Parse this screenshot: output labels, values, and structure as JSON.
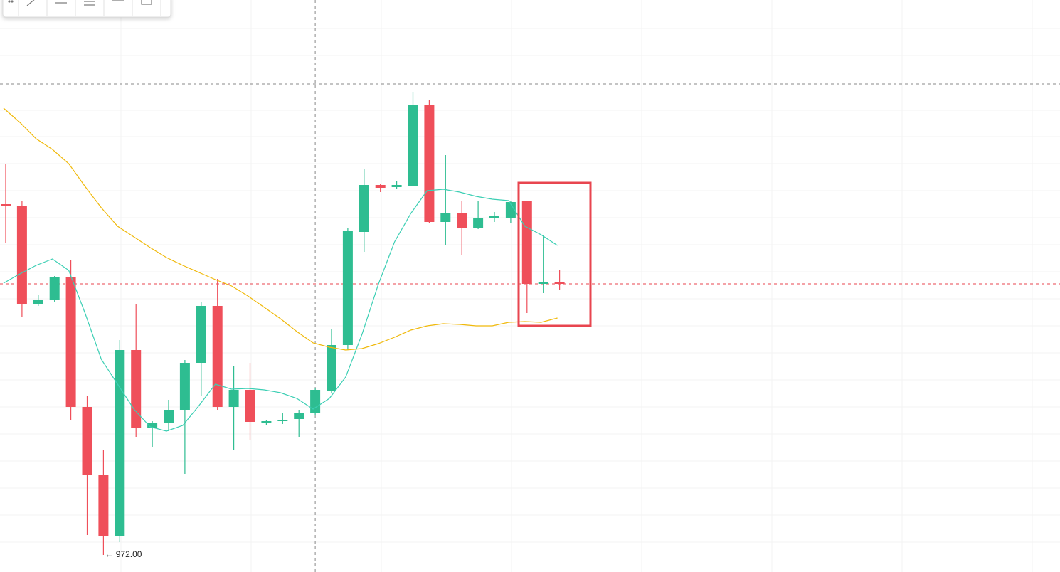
{
  "chart_data": {
    "type": "candlestick",
    "up_color": "#2ebd91",
    "down_color": "#ef4f5a",
    "ylim": [
      969.6,
      1050
    ],
    "grid": true,
    "open": [
      1021.3,
      1021.0,
      1007.2,
      1007.8,
      1011.0,
      992.8,
      983.2,
      974.7,
      1000.8,
      989.8,
      990.5,
      992.4,
      999.0,
      1007.0,
      992.8,
      995.2,
      990.6,
      990.8,
      991.1,
      992.0,
      995.0,
      1001.5,
      1017.4,
      1024.0,
      1023.7,
      1023.8,
      1035.3,
      1018.8,
      1020.1,
      1018.0,
      1019.4,
      1019.3,
      1021.7,
      1010.1,
      1010.3
    ],
    "high": [
      1027.0,
      1021.8,
      1008.6,
      1011.2,
      1013.4,
      994.4,
      986.7,
      1002.2,
      1007.2,
      990.8,
      993.8,
      999.4,
      1007.6,
      1010.8,
      998.6,
      999.0,
      991.0,
      992.0,
      992.4,
      995.4,
      1003.7,
      1018.0,
      1026.3,
      1024.2,
      1024.6,
      1037.0,
      1036.0,
      1028.2,
      1021.8,
      1021.8,
      1020.2,
      1021.8,
      1021.8,
      1017.0,
      1012.0
    ],
    "low": [
      1015.8,
      1005.5,
      1007.0,
      1007.6,
      991.0,
      974.8,
      972.0,
      973.8,
      988.6,
      987.2,
      989.4,
      983.4,
      994.4,
      992.4,
      986.8,
      988.2,
      990.2,
      990.4,
      988.6,
      991.7,
      994.8,
      1000.8,
      1014.6,
      1023.0,
      1023.4,
      1023.8,
      1018.6,
      1015.5,
      1014.2,
      1017.8,
      1018.8,
      1018.6,
      1006.0,
      1008.8,
      1009.2
    ],
    "close": [
      1021.0,
      1007.2,
      1007.8,
      1011.0,
      992.8,
      983.2,
      974.7,
      1000.8,
      989.8,
      990.5,
      992.4,
      999.0,
      1007.0,
      992.8,
      995.2,
      990.7,
      990.8,
      991.0,
      992.0,
      995.2,
      1001.5,
      1017.5,
      1024.0,
      1023.6,
      1024.0,
      1035.3,
      1018.8,
      1020.1,
      1018.0,
      1019.3,
      1019.6,
      1021.6,
      1010.1,
      1010.3,
      1010.1
    ],
    "moving_averages": [
      {
        "color": "#3ccfb4",
        "values": [
          1010.2,
          1011.5,
          1012.7,
          1013.6,
          1012.0,
          1006.0,
          999.5,
          996.0,
          992.5,
          990.0,
          989.4,
          990.2,
          993.0,
          996.0,
          995.3,
          995.4,
          995.2,
          994.8,
          994.0,
          992.5,
          994.0,
          997.0,
          1003.0,
          1010.0,
          1016.0,
          1020.0,
          1023.2,
          1023.4,
          1023.0,
          1022.4,
          1022.0,
          1021.8,
          1018.2,
          1017.0,
          1015.5
        ]
      },
      {
        "color": "#f0b90b",
        "values": [
          1034.8,
          1032.8,
          1030.5,
          1029.0,
          1027.0,
          1023.8,
          1020.8,
          1018.2,
          1016.7,
          1015.2,
          1013.8,
          1012.7,
          1011.7,
          1010.7,
          1009.8,
          1008.4,
          1006.8,
          1005.2,
          1003.4,
          1001.8,
          1001.2,
          1000.8,
          1001.0,
          1001.7,
          1002.6,
          1003.6,
          1004.2,
          1004.5,
          1004.4,
          1004.2,
          1004.2,
          1004.7,
          1004.8,
          1004.7,
          1005.3
        ]
      }
    ],
    "last_price": 1010.1,
    "crosshair_price": 1038.2,
    "crosshair_index": 19,
    "low_annotation": "← 972.00",
    "low_annotation_index": 6,
    "low_annotation_price": 972.0
  }
}
